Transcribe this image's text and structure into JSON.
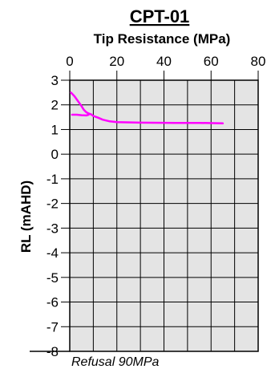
{
  "chart_data": {
    "type": "line",
    "title": "CPT-01",
    "xlabel": "Tip Resistance (MPa)",
    "ylabel": "RL (mAHD)",
    "xlim": [
      0,
      80
    ],
    "ylim": [
      -8,
      3
    ],
    "x_ticks": [
      0,
      20,
      40,
      60,
      80
    ],
    "y_ticks": [
      3,
      2,
      1,
      0,
      -1,
      -2,
      -3,
      -4,
      -5,
      -6,
      -7,
      -8
    ],
    "x_axis_position": "top",
    "grid": true,
    "annotation": "Refusal 90MPa",
    "colors": {
      "plot_bg": "#e4e4e4",
      "grid": "#000000",
      "series": "#ff00ff"
    },
    "series": [
      {
        "x": [
          0.5,
          2,
          3.5,
          5,
          6,
          7,
          8,
          9,
          10,
          12,
          14,
          17,
          20,
          30,
          45,
          55,
          65
        ],
        "y": [
          2.5,
          2.35,
          2.15,
          1.95,
          1.8,
          1.7,
          1.65,
          1.62,
          1.55,
          1.48,
          1.4,
          1.33,
          1.3,
          1.28,
          1.27,
          1.27,
          1.25
        ]
      },
      {
        "x": [
          1,
          3,
          5,
          7,
          8
        ],
        "y": [
          1.6,
          1.6,
          1.58,
          1.57,
          1.6
        ]
      }
    ]
  }
}
